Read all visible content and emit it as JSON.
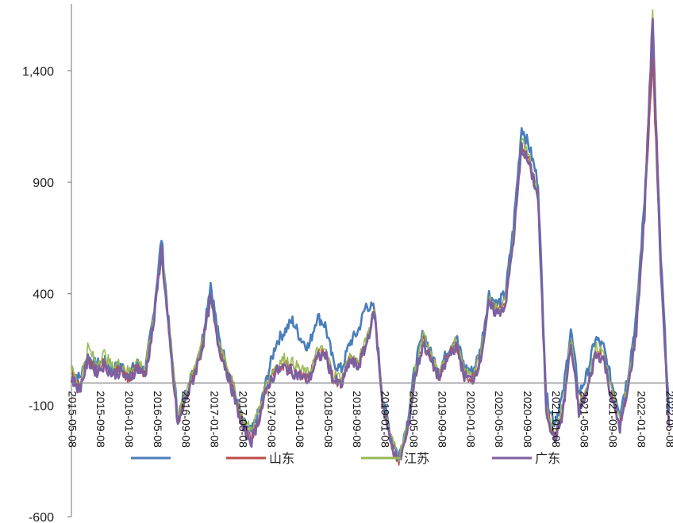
{
  "chart_data": {
    "type": "line",
    "title": "",
    "xlabel": "",
    "ylabel": "",
    "ylim": [
      -600,
      1700
    ],
    "yticks": [
      -600,
      -100,
      400,
      900,
      1400
    ],
    "ytick_labels": [
      "-600",
      "-100",
      "400",
      "900",
      "1,400"
    ],
    "x_tick_labels": [
      "2015-05-08",
      "2015-09-08",
      "2016-01-08",
      "2016-05-08",
      "2016-09-08",
      "2017-01-08",
      "2017-05-08",
      "2017-09-08",
      "2018-01-08",
      "2018-05-08",
      "2018-09-08",
      "2019-01-08",
      "2019-05-08",
      "2019-09-08",
      "2020-01-08",
      "2020-05-08",
      "2020-09-08",
      "2021-01-08",
      "2021-05-08",
      "2021-09-08",
      "2022-01-08",
      "2022-05-08"
    ],
    "x_key_months": [
      0,
      4,
      8,
      12,
      16,
      20,
      24,
      28,
      32,
      36,
      40,
      44,
      48,
      52,
      56,
      60,
      64,
      68,
      72,
      76,
      80,
      84
    ],
    "legend_position": "bottom (overlapping x-axis labels)",
    "series": [
      {
        "name": "",
        "color": "#4a7ebb",
        "values": [
          60,
          20,
          120,
          80,
          100,
          60,
          80,
          40,
          90,
          50,
          300,
          650,
          220,
          -150,
          -40,
          60,
          200,
          450,
          200,
          80,
          -50,
          -180,
          -220,
          -120,
          40,
          180,
          230,
          280,
          200,
          160,
          300,
          260,
          90,
          60,
          180,
          230,
          350,
          330,
          -60,
          -230,
          -330,
          -180,
          80,
          230,
          120,
          60,
          150,
          210,
          70,
          50,
          150,
          400,
          350,
          400,
          700,
          1150,
          1050,
          900,
          -60,
          -180,
          -60,
          240,
          -50,
          40,
          200,
          160,
          0,
          -130,
          40,
          300,
          820,
          1550,
          560,
          -130
        ]
      },
      {
        "name": "山东",
        "color": "#be4b48",
        "values": [
          30,
          -20,
          110,
          60,
          90,
          50,
          60,
          20,
          80,
          40,
          260,
          580,
          190,
          -180,
          -60,
          40,
          170,
          400,
          170,
          60,
          -70,
          -200,
          -250,
          -140,
          0,
          60,
          80,
          60,
          40,
          20,
          120,
          140,
          20,
          0,
          110,
          80,
          180,
          320,
          -80,
          -260,
          -350,
          -220,
          40,
          190,
          100,
          30,
          120,
          180,
          40,
          20,
          120,
          360,
          320,
          360,
          650,
          1070,
          980,
          840,
          -110,
          -250,
          -130,
          180,
          -120,
          -30,
          140,
          120,
          -60,
          -190,
          -20,
          240,
          760,
          1430,
          500,
          -190
        ]
      },
      {
        "name": "江苏",
        "color": "#98b954",
        "values": [
          60,
          -10,
          160,
          90,
          130,
          70,
          90,
          50,
          100,
          60,
          280,
          620,
          230,
          -140,
          -30,
          60,
          200,
          360,
          190,
          90,
          -40,
          -170,
          -210,
          -110,
          20,
          80,
          110,
          90,
          60,
          40,
          140,
          150,
          40,
          20,
          120,
          90,
          190,
          330,
          -70,
          -240,
          -330,
          -200,
          60,
          210,
          110,
          40,
          130,
          190,
          50,
          30,
          130,
          370,
          330,
          370,
          660,
          1090,
          990,
          850,
          -100,
          -230,
          -110,
          200,
          -100,
          -10,
          160,
          140,
          -40,
          -170,
          0,
          260,
          780,
          1660,
          520,
          -170
        ]
      },
      {
        "name": "广东",
        "color": "#7d60a0",
        "values": [
          20,
          -30,
          100,
          50,
          80,
          40,
          50,
          10,
          70,
          30,
          250,
          600,
          180,
          -190,
          -70,
          30,
          160,
          380,
          160,
          50,
          -80,
          -210,
          -260,
          -150,
          -10,
          50,
          70,
          50,
          30,
          10,
          110,
          130,
          10,
          -10,
          100,
          70,
          170,
          320,
          -90,
          -270,
          -360,
          -230,
          30,
          180,
          90,
          20,
          110,
          170,
          30,
          10,
          110,
          350,
          310,
          350,
          640,
          1060,
          970,
          830,
          -120,
          -260,
          -140,
          170,
          -130,
          -40,
          130,
          110,
          -70,
          -200,
          -30,
          230,
          750,
          1640,
          490,
          -200
        ]
      }
    ]
  }
}
